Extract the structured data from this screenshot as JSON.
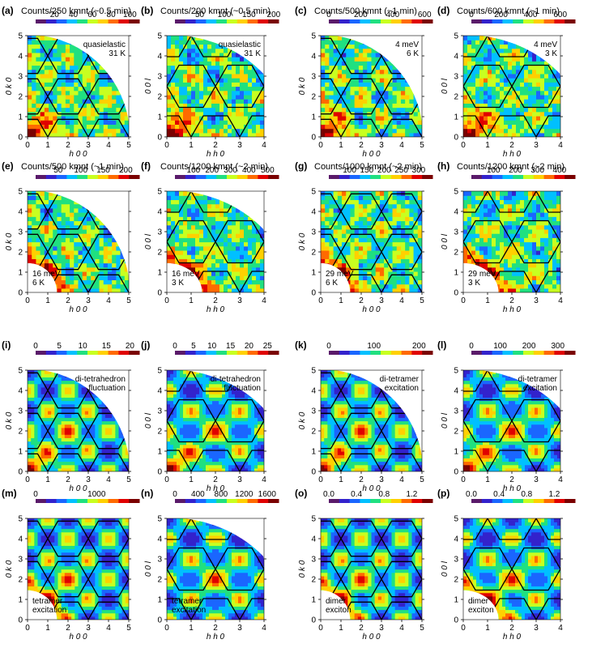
{
  "figure": {
    "colors": {
      "rainbow": [
        "#5a1a6a",
        "#3322cc",
        "#1a66ff",
        "#00c0ff",
        "#20e080",
        "#c8ff20",
        "#ffd000",
        "#ff6a00",
        "#e00000",
        "#7a0000"
      ],
      "hex_line": "#000000",
      "tick_color": "#000000"
    }
  },
  "chart_data": [
    {
      "letter": "(a)",
      "type": "heatmap",
      "colorbar_label": "Counts/250 kmnt (~0.5 min)",
      "colorbar_ticks": [
        "20",
        "40",
        "60",
        "80",
        "100"
      ],
      "clim": [
        0,
        110
      ],
      "xlabel": "h 0 0",
      "ylabel": "0 k 0",
      "xlim": [
        0,
        5
      ],
      "ylim": [
        0,
        5
      ],
      "xticks": [
        "0",
        "1",
        "2",
        "3",
        "4",
        "5"
      ],
      "yticks": [
        "0",
        "1",
        "2",
        "3",
        "4",
        "5"
      ],
      "annotation": [
        "quasielastic",
        "31 K"
      ],
      "annotation_pos": "top-right",
      "exclusion": "outer-corner"
    },
    {
      "letter": "(b)",
      "type": "heatmap",
      "colorbar_label": "Counts/200 kmnt (~0.5 min)",
      "colorbar_ticks": [
        "50",
        "100",
        "150",
        "200"
      ],
      "clim": [
        0,
        210
      ],
      "xlabel": "h h 0",
      "ylabel": "0 0 l",
      "xlim": [
        0,
        4
      ],
      "ylim": [
        0,
        5
      ],
      "xticks": [
        "0",
        "1",
        "2",
        "3",
        "4"
      ],
      "yticks": [
        "0",
        "1",
        "2",
        "3",
        "4",
        "5"
      ],
      "annotation": [
        "quasielastic",
        "31 K"
      ],
      "annotation_pos": "top-right",
      "exclusion": "outer-corner"
    },
    {
      "letter": "(c)",
      "type": "heatmap",
      "colorbar_label": "Counts/500 kmnt (~1 min)",
      "colorbar_ticks": [
        "0",
        "200",
        "400",
        "600"
      ],
      "clim": [
        0,
        650
      ],
      "xlabel": "h 0 0",
      "ylabel": "0 k 0",
      "xlim": [
        0,
        5
      ],
      "ylim": [
        0,
        5
      ],
      "xticks": [
        "0",
        "1",
        "2",
        "3",
        "4",
        "5"
      ],
      "yticks": [
        "0",
        "1",
        "2",
        "3",
        "4",
        "5"
      ],
      "annotation": [
        "4 meV",
        "6 K"
      ],
      "annotation_pos": "top-right",
      "exclusion": "outer-corner"
    },
    {
      "letter": "(d)",
      "type": "heatmap",
      "colorbar_label": "Counts/600 kmnt (~1 min)",
      "colorbar_ticks": [
        "0",
        "200",
        "400",
        "600"
      ],
      "clim": [
        0,
        700
      ],
      "xlabel": "h h 0",
      "ylabel": "0 0 l",
      "xlim": [
        0,
        4
      ],
      "ylim": [
        0,
        5
      ],
      "xticks": [
        "0",
        "1",
        "2",
        "3",
        "4"
      ],
      "yticks": [
        "0",
        "1",
        "2",
        "3",
        "4",
        "5"
      ],
      "annotation": [
        "4 meV",
        "3 K"
      ],
      "annotation_pos": "top-right",
      "exclusion": "outer-corner"
    },
    {
      "letter": "(e)",
      "type": "heatmap",
      "colorbar_label": "Counts/500 kmnt (~1 min)",
      "colorbar_ticks": [
        "50",
        "100",
        "150",
        "200"
      ],
      "clim": [
        0,
        230
      ],
      "xlabel": "h 0 0",
      "ylabel": "0 k 0",
      "xlim": [
        0,
        5
      ],
      "ylim": [
        0,
        5
      ],
      "xticks": [
        "0",
        "1",
        "2",
        "3",
        "4",
        "5"
      ],
      "yticks": [
        "0",
        "1",
        "2",
        "3",
        "4",
        "5"
      ],
      "annotation": [
        "16 meV",
        "6 K"
      ],
      "annotation_pos": "bottom-left",
      "exclusion": "both"
    },
    {
      "letter": "(f)",
      "type": "heatmap",
      "colorbar_label": "Counts/1200 kmnt (~2 min)",
      "colorbar_ticks": [
        "100",
        "200",
        "300",
        "400",
        "500"
      ],
      "clim": [
        0,
        560
      ],
      "xlabel": "h h 0",
      "ylabel": "0 0 l",
      "xlim": [
        0,
        4
      ],
      "ylim": [
        0,
        5
      ],
      "xticks": [
        "0",
        "1",
        "2",
        "3",
        "4"
      ],
      "yticks": [
        "0",
        "1",
        "2",
        "3",
        "4",
        "5"
      ],
      "annotation": [
        "16 meV",
        "3 K"
      ],
      "annotation_pos": "bottom-left",
      "exclusion": "both"
    },
    {
      "letter": "(g)",
      "type": "heatmap",
      "colorbar_label": "Counts/1000 kmnt (~2 min)",
      "colorbar_ticks": [
        "100",
        "150",
        "200",
        "250",
        "300"
      ],
      "clim": [
        40,
        340
      ],
      "xlabel": "h 0 0",
      "ylabel": "0 k 0",
      "xlim": [
        0,
        5
      ],
      "ylim": [
        0,
        5
      ],
      "xticks": [
        "0",
        "1",
        "2",
        "3",
        "4",
        "5"
      ],
      "yticks": [
        "0",
        "1",
        "2",
        "3",
        "4",
        "5"
      ],
      "annotation": [
        "29 meV",
        "6 K"
      ],
      "annotation_pos": "bottom-left",
      "exclusion": "inner-corner"
    },
    {
      "letter": "(h)",
      "type": "heatmap",
      "colorbar_label": "Counts/1200 kmnt (~2 min)",
      "colorbar_ticks": [
        "100",
        "200",
        "300",
        "400"
      ],
      "clim": [
        0,
        470
      ],
      "xlabel": "h h 0",
      "ylabel": "0 0 l",
      "xlim": [
        0,
        4
      ],
      "ylim": [
        0,
        5
      ],
      "xticks": [
        "0",
        "1",
        "2",
        "3",
        "4"
      ],
      "yticks": [
        "0",
        "1",
        "2",
        "3",
        "4",
        "5"
      ],
      "annotation": [
        "29 meV",
        "3 K"
      ],
      "annotation_pos": "bottom-left",
      "exclusion": "inner-corner"
    },
    {
      "letter": "(i)",
      "type": "heatmap",
      "colorbar_label": "",
      "colorbar_ticks": [
        "0",
        "5",
        "10",
        "15",
        "20"
      ],
      "clim": [
        0,
        22
      ],
      "xlabel": "h 0 0",
      "ylabel": "0 k 0",
      "xlim": [
        0,
        5
      ],
      "ylim": [
        0,
        5
      ],
      "xticks": [
        "0",
        "1",
        "2",
        "3",
        "4",
        "5"
      ],
      "yticks": [
        "0",
        "1",
        "2",
        "3",
        "4",
        "5"
      ],
      "annotation": [
        "di-tetrahedron",
        "fluctuation"
      ],
      "annotation_pos": "top-right",
      "exclusion": "outer-corner"
    },
    {
      "letter": "(j)",
      "type": "heatmap",
      "colorbar_label": "",
      "colorbar_ticks": [
        "0",
        "5",
        "10",
        "15",
        "20",
        "25"
      ],
      "clim": [
        0,
        28
      ],
      "xlabel": "h h 0",
      "ylabel": "0 0 l",
      "xlim": [
        0,
        4
      ],
      "ylim": [
        0,
        5
      ],
      "xticks": [
        "0",
        "1",
        "2",
        "3",
        "4"
      ],
      "yticks": [
        "0",
        "1",
        "2",
        "3",
        "4",
        "5"
      ],
      "annotation": [
        "di-tetrahedron",
        "fluctuation"
      ],
      "annotation_pos": "top-right",
      "exclusion": "outer-corner"
    },
    {
      "letter": "(k)",
      "type": "heatmap",
      "colorbar_label": "",
      "colorbar_ticks": [
        "0",
        "100",
        "200"
      ],
      "clim": [
        0,
        230
      ],
      "xlabel": "h 0 0",
      "ylabel": "0 k 0",
      "xlim": [
        0,
        5
      ],
      "ylim": [
        0,
        5
      ],
      "xticks": [
        "0",
        "1",
        "2",
        "3",
        "4",
        "5"
      ],
      "yticks": [
        "0",
        "1",
        "2",
        "3",
        "4",
        "5"
      ],
      "annotation": [
        "di-tetramer",
        "excitation"
      ],
      "annotation_pos": "top-right",
      "exclusion": "outer-corner"
    },
    {
      "letter": "(l)",
      "type": "heatmap",
      "colorbar_label": "",
      "colorbar_ticks": [
        "0",
        "100",
        "200",
        "300"
      ],
      "clim": [
        0,
        360
      ],
      "xlabel": "h h 0",
      "ylabel": "0 0 l",
      "xlim": [
        0,
        4
      ],
      "ylim": [
        0,
        5
      ],
      "xticks": [
        "0",
        "1",
        "2",
        "3",
        "4"
      ],
      "yticks": [
        "0",
        "1",
        "2",
        "3",
        "4",
        "5"
      ],
      "annotation": [
        "di-tetramer",
        "excitation"
      ],
      "annotation_pos": "top-right",
      "exclusion": "outer-corner"
    },
    {
      "letter": "(m)",
      "type": "heatmap",
      "colorbar_label": "",
      "colorbar_ticks": [
        "0",
        "1000"
      ],
      "clim": [
        0,
        1700
      ],
      "xlabel": "h 0 0",
      "ylabel": "0 k 0",
      "xlim": [
        0,
        5
      ],
      "ylim": [
        0,
        5
      ],
      "xticks": [
        "0",
        "1",
        "2",
        "3",
        "4",
        "5"
      ],
      "yticks": [
        "0",
        "1",
        "2",
        "3",
        "4",
        "5"
      ],
      "annotation": [
        "tetramer",
        "excitation"
      ],
      "annotation_pos": "bottom-left",
      "exclusion": "inner-corner"
    },
    {
      "letter": "(n)",
      "type": "heatmap",
      "colorbar_label": "",
      "colorbar_ticks": [
        "0",
        "400",
        "800",
        "1200",
        "1600"
      ],
      "clim": [
        0,
        1800
      ],
      "xlabel": "h h 0",
      "ylabel": "0 0 l",
      "xlim": [
        0,
        4
      ],
      "ylim": [
        0,
        5
      ],
      "xticks": [
        "0",
        "1",
        "2",
        "3",
        "4"
      ],
      "yticks": [
        "0",
        "1",
        "2",
        "3",
        "4",
        "5"
      ],
      "annotation": [
        "tetramer",
        "excitation"
      ],
      "annotation_pos": "bottom-left",
      "exclusion": "outer-corner"
    },
    {
      "letter": "(o)",
      "type": "heatmap",
      "colorbar_label": "",
      "colorbar_ticks": [
        "0.0",
        "0.4",
        "0.8",
        "1.2"
      ],
      "clim": [
        0,
        1.5
      ],
      "xlabel": "h 0 0",
      "ylabel": "0 k 0",
      "xlim": [
        0,
        5
      ],
      "ylim": [
        0,
        5
      ],
      "xticks": [
        "0",
        "1",
        "2",
        "3",
        "4",
        "5"
      ],
      "yticks": [
        "0",
        "1",
        "2",
        "3",
        "4",
        "5"
      ],
      "annotation": [
        "dimer",
        "exciton"
      ],
      "annotation_pos": "bottom-left",
      "exclusion": "inner-corner"
    },
    {
      "letter": "(p)",
      "type": "heatmap",
      "colorbar_label": "",
      "colorbar_ticks": [
        "0.0",
        "0.4",
        "0.8",
        "1.2"
      ],
      "clim": [
        0,
        1.5
      ],
      "xlabel": "h h 0",
      "ylabel": "0 0 l",
      "xlim": [
        0,
        4
      ],
      "ylim": [
        0,
        5
      ],
      "xticks": [
        "0",
        "1",
        "2",
        "3",
        "4"
      ],
      "yticks": [
        "0",
        "1",
        "2",
        "3",
        "4",
        "5"
      ],
      "annotation": [
        "dimer",
        "exciton"
      ],
      "annotation_pos": "bottom-left",
      "exclusion": "inner-corner"
    }
  ]
}
